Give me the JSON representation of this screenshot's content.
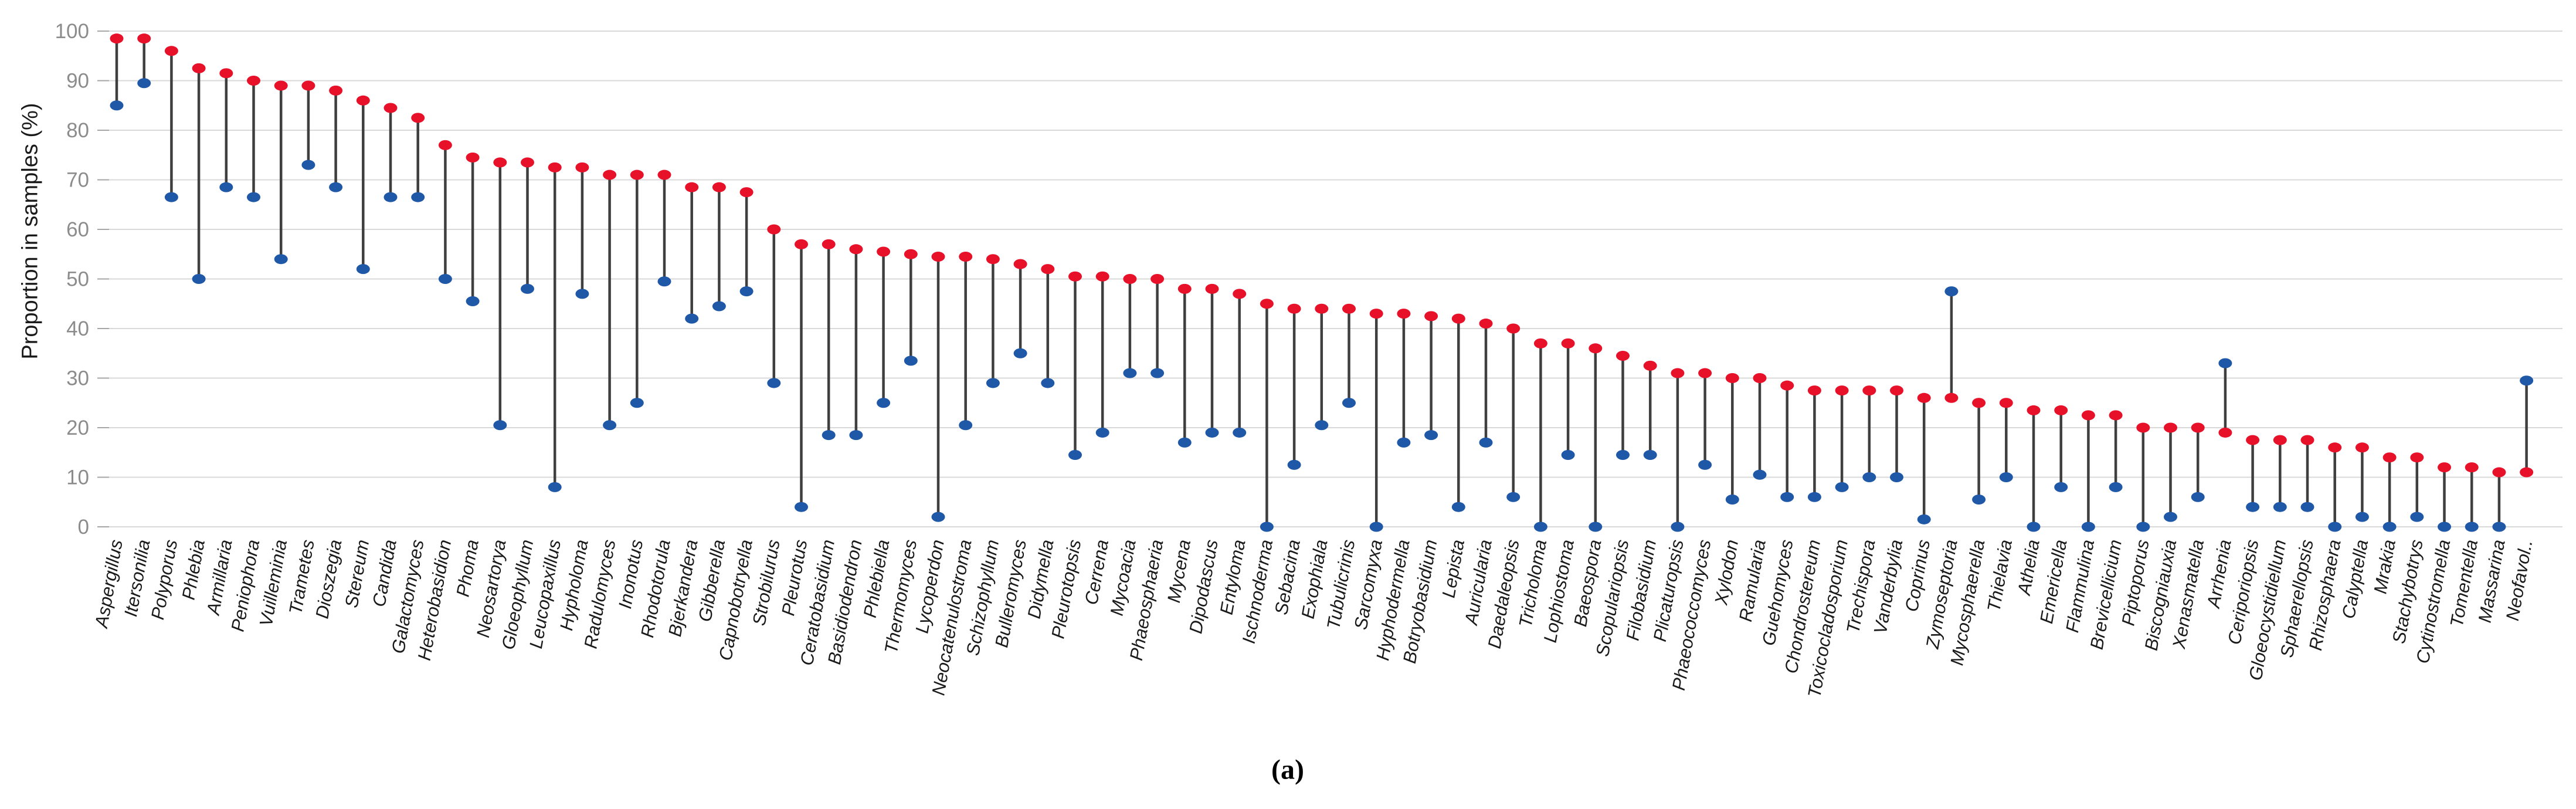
{
  "figure": {
    "caption": "(a)"
  },
  "chart_data": {
    "type": "scatter",
    "variant": "dumbbell-range",
    "title": "",
    "xlabel": "",
    "ylabel": "Proportion in samples (%)",
    "ylim": [
      0,
      100
    ],
    "yticks": [
      0,
      10,
      20,
      30,
      40,
      50,
      60,
      70,
      80,
      90,
      100
    ],
    "grid": true,
    "legend": "none",
    "categories": [
      "Aspergillus",
      "Itersonilia",
      "Polyporus",
      "Phlebia",
      "Armillaria",
      "Peniophora",
      "Vuilleminia",
      "Trametes",
      "Dioszegia",
      "Stereum",
      "Candida",
      "Galactomyces",
      "Heterobasidion",
      "Phoma",
      "Neosartorya",
      "Gloeophyllum",
      "Leucopaxillus",
      "Hypholoma",
      "Radulomyces",
      "Inonotus",
      "Rhodotorula",
      "Bjerkandera",
      "Gibberella",
      "Capnobotryella",
      "Strobilurus",
      "Pleurotus",
      "Ceratobasidium",
      "Basidiodendron",
      "Phlebiella",
      "Thermomyces",
      "Lycoperdon",
      "Neocatenulostroma",
      "Schizophyllum",
      "Bulleromyces",
      "Didymella",
      "Pleurotopsis",
      "Cerrena",
      "Mycoacia",
      "Phaeosphaeria",
      "Mycena",
      "Dipodascus",
      "Entyloma",
      "Ischnoderma",
      "Sebacina",
      "Exophiala",
      "Tubulicrinis",
      "Sarcomyxa",
      "Hyphodermella",
      "Botryobasidium",
      "Lepista",
      "Auricularia",
      "Daedaleopsis",
      "Tricholoma",
      "Lophiostoma",
      "Baeospora",
      "Scopulariopsis",
      "Filobasidium",
      "Plicaturopsis",
      "Phaeococcomyces",
      "Xylodon",
      "Ramularia",
      "Guehomyces",
      "Chondrostereum",
      "Toxicocladosporium",
      "Trechispora",
      "Vanderbylia",
      "Coprinus",
      "Zymoseptoria",
      "Mycosphaerella",
      "Thielavia",
      "Athelia",
      "Emericella",
      "Flammulina",
      "Brevicellicium",
      "Piptoporus",
      "Biscogniauxia",
      "Xenasmatella",
      "Arrhenia",
      "Ceriporiopsis",
      "Gloeocystidiellum",
      "Sphaerellopsis",
      "Rhizosphaera",
      "Calyptella",
      "Mrakia",
      "Stachybotrys",
      "Cytinostromella",
      "Tomentella",
      "Massarina",
      "Neofavol.."
    ],
    "series": [
      {
        "name": "red",
        "color": "#e8112a",
        "values": [
          98.5,
          98.5,
          96,
          92.5,
          91.5,
          90,
          89,
          89,
          88,
          86,
          84.5,
          82.5,
          77,
          74.5,
          73.5,
          73.5,
          72.5,
          72.5,
          71,
          71,
          71,
          68.5,
          68.5,
          67.5,
          60,
          57,
          57,
          56,
          55.5,
          55,
          54.5,
          54.5,
          54,
          53,
          52,
          50.5,
          50.5,
          50,
          50,
          48,
          48,
          47,
          45,
          44,
          44,
          44,
          43,
          43,
          42.5,
          42,
          41,
          40,
          37,
          37,
          36,
          34.5,
          32.5,
          31,
          31,
          30,
          30,
          28.5,
          27.5,
          27.5,
          27.5,
          27.5,
          26,
          26,
          25,
          25,
          23.5,
          23.5,
          22.5,
          22.5,
          20,
          20,
          20,
          19,
          17.5,
          17.5,
          17.5,
          16,
          16,
          14,
          14,
          12,
          12,
          11,
          11
        ]
      },
      {
        "name": "blue",
        "color": "#2058a8",
        "values": [
          85,
          89.5,
          66.5,
          50,
          68.5,
          66.5,
          54,
          73,
          68.5,
          52,
          66.5,
          66.5,
          50,
          45.5,
          20.5,
          48,
          8,
          47,
          20.5,
          25,
          49.5,
          42,
          44.5,
          47.5,
          29,
          4,
          18.5,
          18.5,
          25,
          33.5,
          2,
          20.5,
          29,
          35,
          29,
          14.5,
          19,
          31,
          31,
          17,
          19,
          19,
          0,
          12.5,
          20.5,
          25,
          0,
          17,
          18.5,
          4,
          17,
          6,
          0,
          14.5,
          0,
          14.5,
          14.5,
          0,
          12.5,
          5.5,
          10.5,
          6,
          6,
          8,
          10,
          10,
          1.5,
          47.5,
          5.5,
          10,
          0,
          8,
          0,
          8,
          0,
          2,
          6,
          33,
          4,
          4,
          4,
          0,
          2,
          0,
          2,
          0,
          0,
          0,
          29.5
        ]
      }
    ],
    "connector_color": "#3f3f3f"
  },
  "style": {
    "background": "#ffffff",
    "grid_color": "#d9d9d9",
    "tick_color": "#a6a6a6",
    "tick_text_color": "#8c8c8c",
    "axis_title_color": "#1a1a1a",
    "category_label_color": "#1a1a1a"
  }
}
